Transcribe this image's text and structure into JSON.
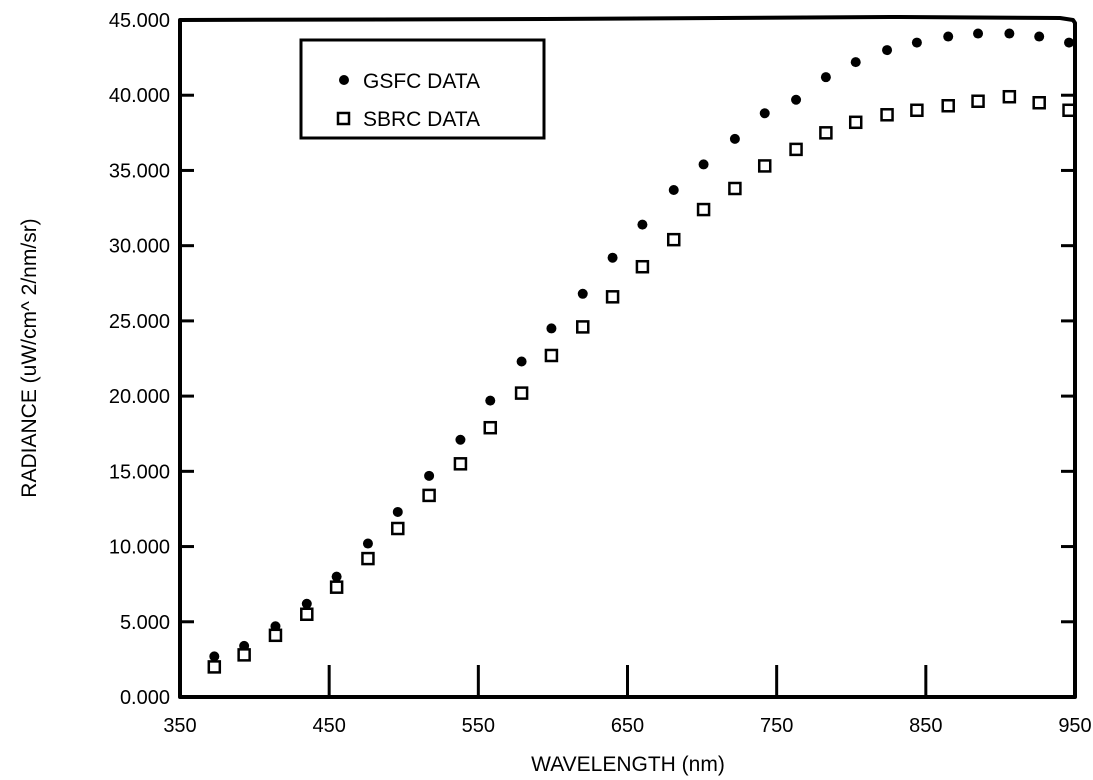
{
  "chart_data": {
    "type": "scatter",
    "title": "",
    "xlabel": "WAVELENGTH (nm)",
    "ylabel": "RADIANCE (uW/cm^ 2/nm/sr)",
    "xlim": [
      350,
      950
    ],
    "ylim": [
      0,
      45
    ],
    "x_ticks": [
      350,
      450,
      550,
      650,
      750,
      850,
      950
    ],
    "x_tick_labels": [
      "350",
      "450",
      "550",
      "650",
      "750",
      "850",
      "950"
    ],
    "y_ticks": [
      0,
      5,
      10,
      15,
      20,
      25,
      30,
      35,
      40,
      45
    ],
    "y_tick_labels": [
      "0.000",
      "5.000",
      "10.000",
      "15.000",
      "20.000",
      "25.000",
      "30.000",
      "35.000",
      "40.000",
      "45.000"
    ],
    "grid": false,
    "legend_position": "top-left",
    "x": [
      373,
      393,
      414,
      435,
      455,
      476,
      496,
      517,
      538,
      558,
      579,
      599,
      620,
      640,
      660,
      681,
      701,
      722,
      742,
      763,
      783,
      803,
      824,
      844,
      865,
      885,
      906,
      926,
      946
    ],
    "series": [
      {
        "name": "GSFC DATA",
        "marker": "filled-circle",
        "color": "#000000",
        "values": [
          2.7,
          3.4,
          4.7,
          6.2,
          8.0,
          10.2,
          12.3,
          14.7,
          17.1,
          19.7,
          22.3,
          24.5,
          26.8,
          29.2,
          31.4,
          33.7,
          35.4,
          37.1,
          38.8,
          39.7,
          41.2,
          42.2,
          43.0,
          43.5,
          43.9,
          44.1,
          44.1,
          43.9,
          43.5
        ]
      },
      {
        "name": "SBRC DATA",
        "marker": "open-square",
        "color": "#000000",
        "values": [
          2.0,
          2.8,
          4.1,
          5.5,
          7.3,
          9.2,
          11.2,
          13.4,
          15.5,
          17.9,
          20.2,
          22.7,
          24.6,
          26.6,
          28.6,
          30.4,
          32.4,
          33.8,
          35.3,
          36.4,
          37.5,
          38.2,
          38.7,
          39.0,
          39.3,
          39.6,
          39.9,
          39.5,
          39.0
        ]
      }
    ]
  }
}
